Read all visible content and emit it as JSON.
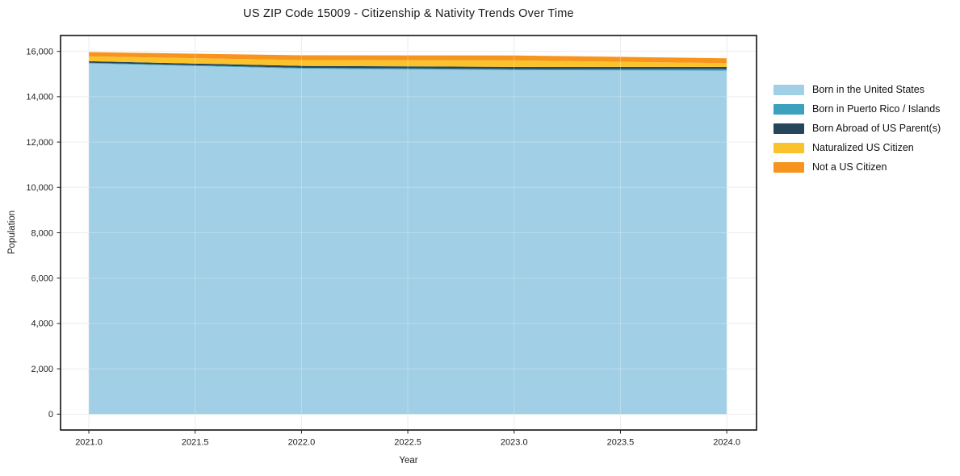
{
  "page": {
    "background": "#ffffff"
  },
  "chart_data": {
    "type": "area",
    "stacked": true,
    "title": "US ZIP Code 15009 - Citizenship & Nativity Trends Over Time",
    "xlabel": "Year",
    "ylabel": "Population",
    "x": [
      2021,
      2022,
      2023,
      2024
    ],
    "series": [
      {
        "name": "Born in the United States",
        "color": "#a0cfe6",
        "values": [
          15470,
          15240,
          15175,
          15150
        ]
      },
      {
        "name": "Born in Puerto Rico / Islands",
        "color": "#3da0bd",
        "values": [
          30,
          35,
          50,
          70
        ]
      },
      {
        "name": "Born Abroad of US Parent(s)",
        "color": "#24455a",
        "values": [
          65,
          85,
          90,
          95
        ]
      },
      {
        "name": "Naturalized US Citizen",
        "color": "#fbc32b",
        "values": [
          215,
          255,
          285,
          165
        ]
      },
      {
        "name": "Not a US Citizen",
        "color": "#f7941e",
        "values": [
          185,
          215,
          220,
          215
        ]
      }
    ],
    "totals": [
      15965,
      15830,
      15820,
      15695
    ],
    "xlim": [
      2020.867,
      2024.14
    ],
    "ylim": [
      -700,
      16700
    ],
    "xticks": {
      "values": [
        2021,
        2021.5,
        2022,
        2022.5,
        2023,
        2023.5,
        2024
      ],
      "labels": [
        "2021.0",
        "2021.5",
        "2022.0",
        "2022.5",
        "2023.0",
        "2023.5",
        "2024.0"
      ]
    },
    "yticks": {
      "values": [
        0,
        2000,
        4000,
        6000,
        8000,
        10000,
        12000,
        14000,
        16000
      ],
      "labels": [
        "0",
        "2,000",
        "4,000",
        "6,000",
        "8,000",
        "10,000",
        "12,000",
        "14,000",
        "16,000"
      ]
    },
    "grid": true,
    "legend_position": "right-outside"
  },
  "colors": {
    "grid": "#e7e7e7",
    "grid_overlay": "rgba(255,255,255,0.28)",
    "spine": "#000000",
    "tick": "#202020"
  }
}
